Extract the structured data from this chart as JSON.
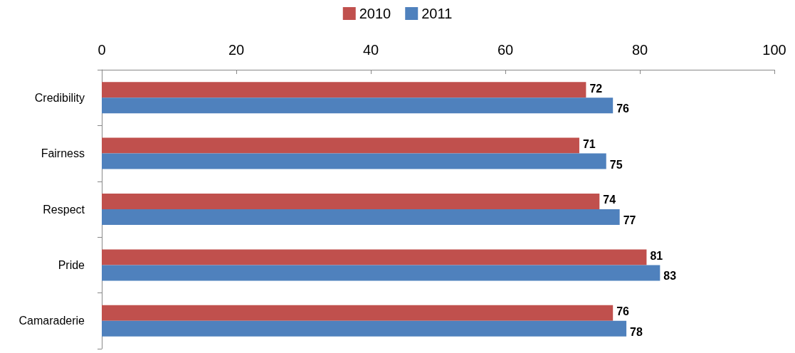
{
  "chart_data": {
    "type": "bar",
    "orientation": "horizontal",
    "categories": [
      "Credibility",
      "Fairness",
      "Respect",
      "Pride",
      "Camaraderie"
    ],
    "series": [
      {
        "name": "2010",
        "color": "#c0504d",
        "values": [
          72,
          71,
          74,
          81,
          76
        ]
      },
      {
        "name": "2011",
        "color": "#4f81bd",
        "values": [
          76,
          75,
          77,
          83,
          78
        ]
      }
    ],
    "xlim": [
      0,
      100
    ],
    "xticks": [
      0,
      20,
      40,
      60,
      80,
      100
    ],
    "data_labels": true,
    "grid": false,
    "legend": "top"
  }
}
